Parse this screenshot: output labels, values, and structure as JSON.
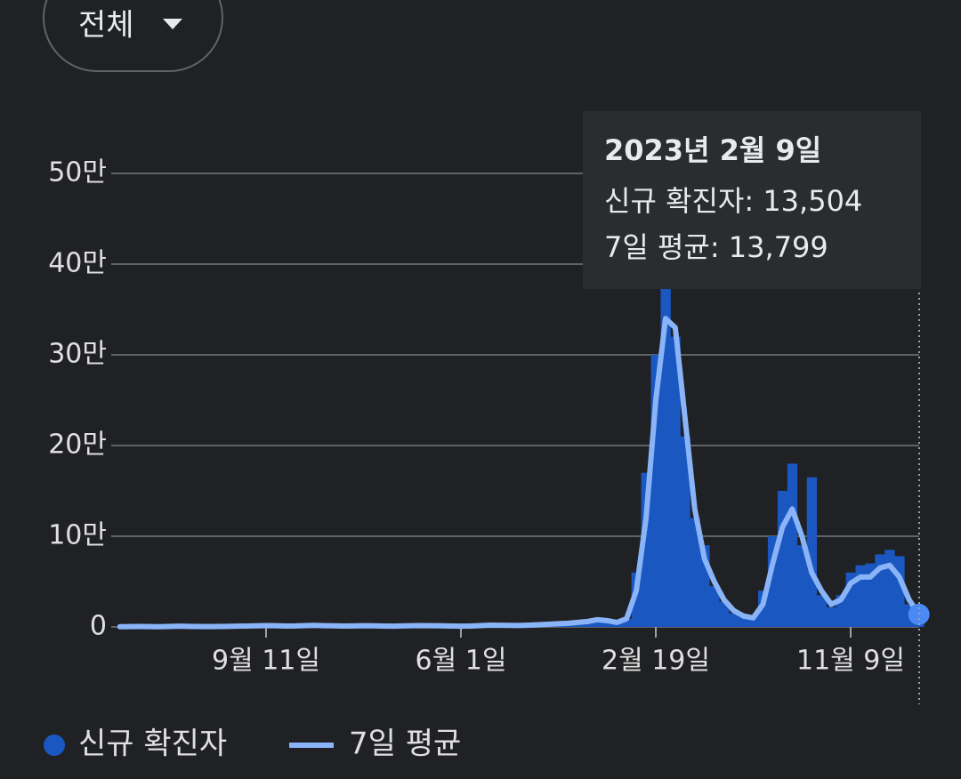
{
  "filter": {
    "label": "전체"
  },
  "chart_data": {
    "type": "bar-line",
    "categories": [
      null,
      null,
      null,
      null,
      null,
      null,
      null,
      null,
      null,
      null,
      null,
      null,
      null,
      null,
      null,
      "9월 11일",
      null,
      null,
      null,
      null,
      null,
      null,
      null,
      null,
      null,
      null,
      null,
      null,
      null,
      null,
      null,
      null,
      null,
      null,
      null,
      "6월 1일",
      null,
      null,
      null,
      null,
      null,
      null,
      null,
      null,
      null,
      null,
      null,
      null,
      null,
      null,
      null,
      null,
      null,
      null,
      null,
      "2월 19일",
      null,
      null,
      null,
      null,
      null,
      null,
      null,
      null,
      null,
      null,
      null,
      null,
      null,
      null,
      null,
      null,
      null,
      null,
      null,
      "11월 9일",
      null,
      null,
      null,
      null,
      null,
      null,
      null
    ],
    "series": [
      {
        "name": "신규 확진자",
        "color": "#1b57c0",
        "values": [
          300,
          400,
          500,
          400,
          300,
          500,
          800,
          600,
          500,
          400,
          500,
          600,
          800,
          1000,
          1200,
          1500,
          1300,
          1000,
          1100,
          1500,
          1700,
          1400,
          1200,
          1000,
          1100,
          1300,
          1200,
          1000,
          900,
          1100,
          1300,
          1500,
          1400,
          1200,
          1000,
          900,
          1000,
          1500,
          2000,
          1800,
          1700,
          1600,
          2000,
          2500,
          3000,
          3500,
          4000,
          5000,
          6000,
          8000,
          7000,
          5000,
          9000,
          60000,
          170000,
          300000,
          400000,
          320000,
          210000,
          120000,
          90000,
          45000,
          28000,
          15000,
          11000,
          12000,
          40000,
          100000,
          150000,
          180000,
          90000,
          165000,
          35000,
          22000,
          35000,
          60000,
          68000,
          70000,
          80000,
          85000,
          78000,
          25000,
          13504
        ]
      },
      {
        "name": "7일 평균",
        "color": "#8ab4f8",
        "values": [
          300,
          400,
          500,
          400,
          300,
          500,
          800,
          600,
          500,
          400,
          500,
          600,
          800,
          1000,
          1200,
          1500,
          1300,
          1000,
          1100,
          1500,
          1700,
          1400,
          1200,
          1000,
          1100,
          1300,
          1200,
          1000,
          900,
          1100,
          1300,
          1500,
          1400,
          1200,
          1000,
          900,
          1000,
          1500,
          2000,
          1800,
          1700,
          1600,
          2000,
          2500,
          3000,
          3500,
          4000,
          5000,
          6000,
          8000,
          7000,
          5000,
          9000,
          40000,
          120000,
          250000,
          340000,
          330000,
          230000,
          130000,
          75000,
          50000,
          30000,
          18000,
          12000,
          10000,
          25000,
          70000,
          110000,
          130000,
          100000,
          60000,
          40000,
          25000,
          30000,
          48000,
          55000,
          55000,
          65000,
          68000,
          55000,
          30000,
          13799
        ]
      }
    ],
    "ylim": [
      0,
      500000
    ],
    "yticks": [
      0,
      {
        "value": 100000,
        "label": "10만"
      },
      {
        "value": 200000,
        "label": "20만"
      },
      {
        "value": 300000,
        "label": "30만"
      },
      {
        "value": 400000,
        "label": "40만"
      },
      {
        "value": 500000,
        "label": "50만"
      }
    ],
    "grid": true,
    "tooltip": {
      "title": "2023년 2월 9일",
      "lines": [
        "신규 확진자: 13,504",
        "7일 평균: 13,799"
      ]
    }
  }
}
